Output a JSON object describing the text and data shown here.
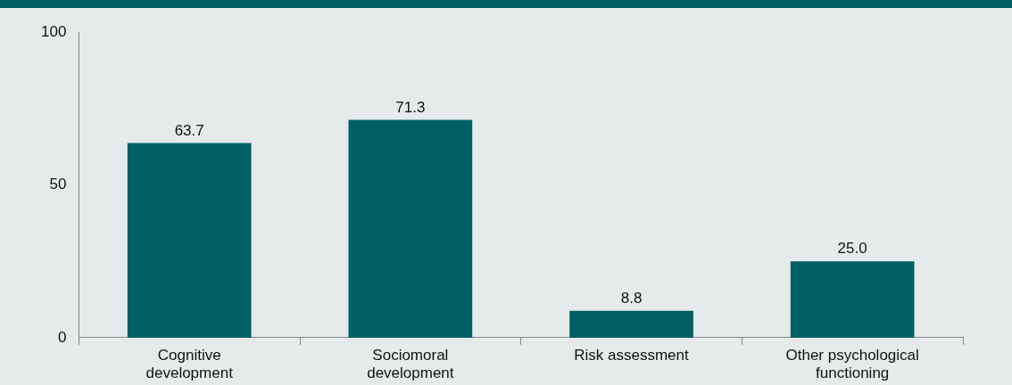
{
  "chart_data": {
    "type": "bar",
    "categories": [
      "Cognitive development",
      "Sociomoral development",
      "Risk assessment",
      "Other psychological functioning"
    ],
    "values": [
      63.7,
      71.3,
      8.8,
      25.0
    ],
    "value_labels": [
      "63.7",
      "71.3",
      "8.8",
      "25.0"
    ],
    "color": "#006064",
    "ylim": [
      0,
      100
    ],
    "yticks": [
      0,
      50,
      100
    ],
    "grid": false,
    "legend": false
  }
}
